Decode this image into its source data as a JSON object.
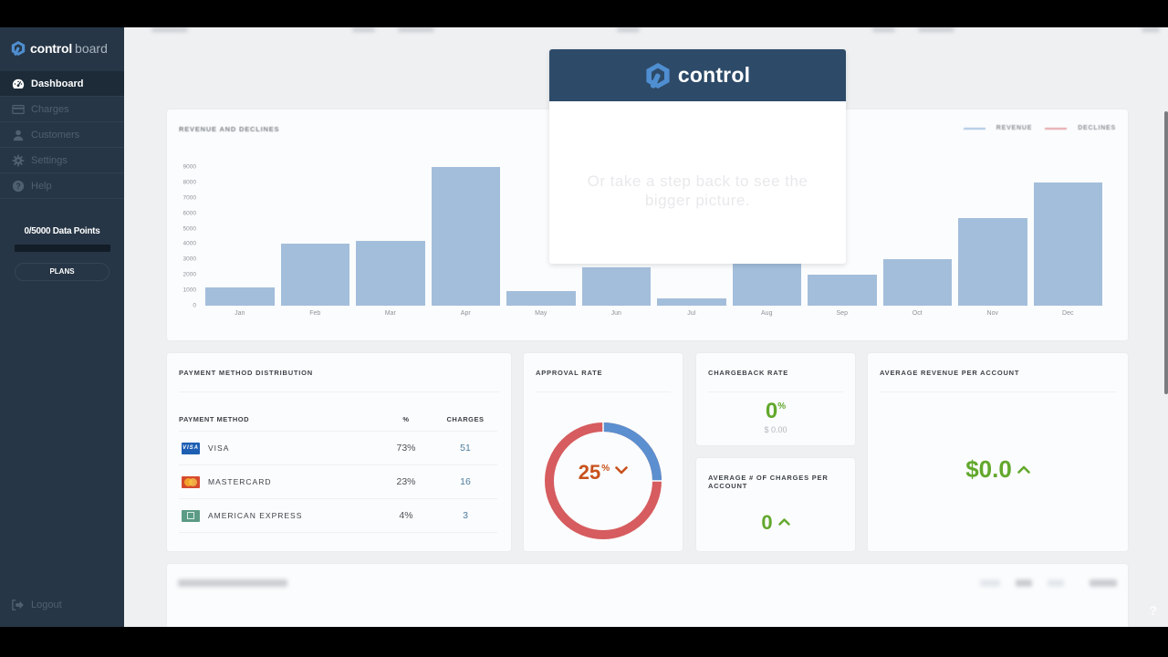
{
  "brand": {
    "name": "control",
    "sub": "board"
  },
  "sidebar": {
    "items": [
      {
        "label": "Dashboard",
        "icon": "dashboard-gauge-icon",
        "active": true
      },
      {
        "label": "Charges",
        "icon": "credit-card-icon",
        "active": false
      },
      {
        "label": "Customers",
        "icon": "user-icon",
        "active": false
      },
      {
        "label": "Settings",
        "icon": "gear-icon",
        "active": false
      },
      {
        "label": "Help",
        "icon": "question-circle-icon",
        "active": false
      }
    ],
    "data_points": "0/5000 Data Points",
    "plans_label": "PLANS",
    "logout_label": "Logout"
  },
  "revenue_chart": {
    "title": "REVENUE AND DECLINES",
    "legend": [
      {
        "label": "REVENUE",
        "color": "#a9c4e2"
      },
      {
        "label": "DECLINES",
        "color": "#e6a3a8"
      }
    ]
  },
  "chart_data": {
    "type": "bar",
    "title": "REVENUE AND DECLINES",
    "categories": [
      "Jan",
      "Feb",
      "Mar",
      "Apr",
      "May",
      "Jun",
      "Jul",
      "Aug",
      "Sep",
      "Oct",
      "Nov",
      "Dec"
    ],
    "series": [
      {
        "name": "REVENUE",
        "color": "#a3bedb",
        "values": [
          1200,
          4000,
          4200,
          9000,
          950,
          2500,
          500,
          2800,
          2000,
          3000,
          5700,
          8000
        ]
      },
      {
        "name": "DECLINES",
        "color": "#e6a3a8",
        "values": []
      }
    ],
    "yticks": [
      0,
      1000,
      2000,
      3000,
      4000,
      5000,
      6000,
      7000,
      8000,
      9000
    ],
    "ylim": [
      0,
      9000
    ],
    "xlabel": "",
    "ylabel": "",
    "grid": false,
    "legend_position": "top-right"
  },
  "payment": {
    "title": "PAYMENT METHOD DISTRIBUTION",
    "headers": {
      "method": "PAYMENT METHOD",
      "pct": "%",
      "charges": "CHARGES"
    },
    "rows": [
      {
        "method": "VISA",
        "icon_text": "VISA",
        "pct": "73%",
        "charges": "51"
      },
      {
        "method": "MASTERCARD",
        "icon_text": "",
        "pct": "23%",
        "charges": "16"
      },
      {
        "method": "AMERICAN EXPRESS",
        "icon_text": "",
        "pct": "4%",
        "charges": "3"
      }
    ]
  },
  "approval": {
    "title": "APPROVAL RATE",
    "value": "25",
    "unit": "%",
    "trend": "down",
    "approved_color": "#5b8fcf",
    "declined_color": "#d65c5f"
  },
  "chargeback": {
    "title": "CHARGEBACK RATE",
    "value": "0",
    "unit": "%",
    "amount": "$ 0.00"
  },
  "avg_charges": {
    "title": "AVERAGE # OF CHARGES PER ACCOUNT",
    "value": "0",
    "trend": "up"
  },
  "avg_revenue": {
    "title": "AVERAGE REVENUE PER ACCOUNT",
    "value": "$0.0",
    "trend": "up"
  },
  "modal": {
    "brand": "control",
    "message": "Or take a step back to see the bigger picture."
  },
  "help_glyph": "?"
}
